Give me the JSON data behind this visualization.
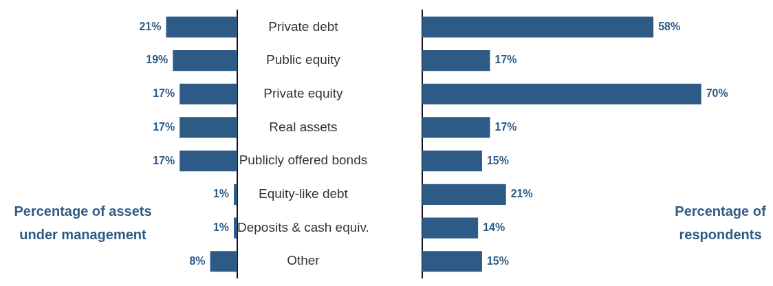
{
  "chart_data": [
    {
      "type": "bar",
      "orientation": "horizontal",
      "title": "Percentage of assets under management",
      "categories": [
        "Private debt",
        "Public equity",
        "Private equity",
        "Real assets",
        "Publicly offered bonds",
        "Equity-like debt",
        "Deposits & cash equiv.",
        "Other"
      ],
      "values": [
        21,
        19,
        17,
        17,
        17,
        1,
        1,
        8
      ],
      "value_labels": [
        "21%",
        "19%",
        "17%",
        "17%",
        "17%",
        "1%",
        "1%",
        "8%"
      ],
      "color": "#2d5b86",
      "xlim": [
        70,
        0
      ],
      "tick_labels": "y"
    },
    {
      "type": "bar",
      "orientation": "horizontal",
      "title": "Percentage of respondents",
      "categories": [
        null,
        null,
        null,
        null,
        null,
        null,
        null,
        null
      ],
      "values": [
        58,
        17,
        70,
        17,
        15,
        21,
        14,
        15
      ],
      "value_labels": [
        "58%",
        "17%",
        "70%",
        "17%",
        "15%",
        "21%",
        "14%",
        "15%"
      ],
      "color": "#2d5b86",
      "xlim": [
        0,
        88
      ]
    }
  ]
}
